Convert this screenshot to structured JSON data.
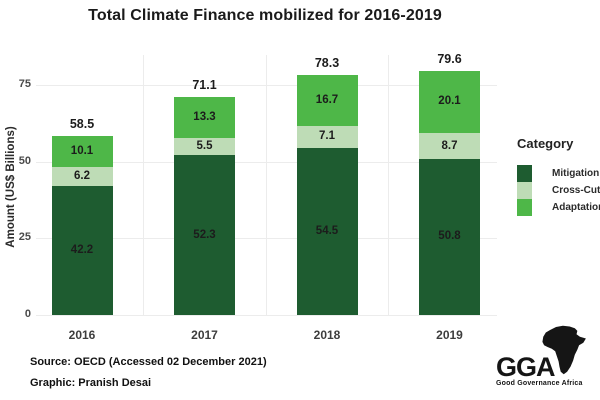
{
  "title": "Total Climate Finance mobilized for 2016-2019",
  "chart_data": {
    "type": "bar",
    "stacked": true,
    "title": "Total Climate Finance mobilized for 2016-2019",
    "categories": [
      "2016",
      "2017",
      "2018",
      "2019"
    ],
    "series": [
      {
        "name": "Mitigation",
        "color": "#1e5c30",
        "values": [
          42.2,
          52.3,
          54.5,
          50.8
        ]
      },
      {
        "name": "Cross-Cutting",
        "color": "#bedcb6",
        "values": [
          6.2,
          5.5,
          7.1,
          8.7
        ]
      },
      {
        "name": "Adaptation",
        "color": "#4eb748",
        "values": [
          10.1,
          13.3,
          16.7,
          20.1
        ]
      }
    ],
    "totals": [
      58.5,
      71.1,
      78.3,
      79.6
    ],
    "xlabel": "",
    "ylabel": "Amount (US$ Billions)",
    "yticks": [
      0,
      25,
      50,
      75
    ],
    "ylim": [
      0,
      85
    ],
    "grid": true,
    "legend_title": "Category",
    "legend_position": "right",
    "background": "#ffffff",
    "grid_color": "#ececec"
  },
  "footer": {
    "source": "Source: OECD (Accessed 02 December 2021)",
    "credit": "Graphic: Pranish Desai"
  },
  "logo": {
    "text": "GGA",
    "subtext": "Good Governance Africa"
  }
}
